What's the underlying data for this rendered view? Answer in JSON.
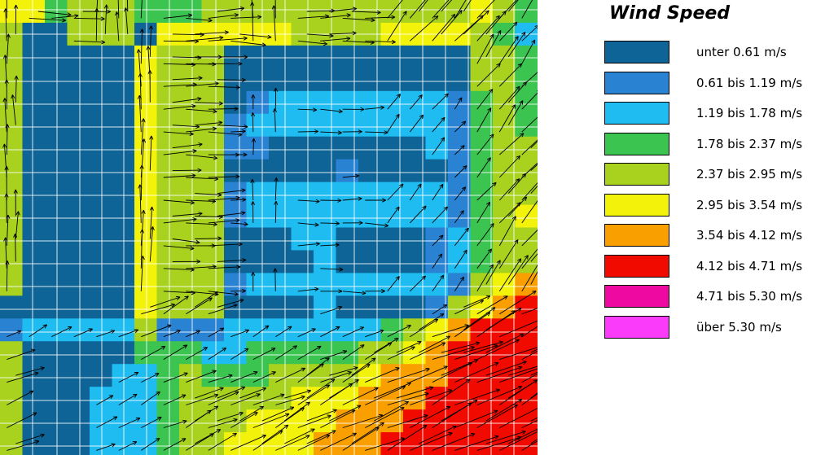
{
  "chart_data": {
    "type": "heatmap",
    "title": "Wind Speed",
    "unit": "m/s",
    "legend_position": "right",
    "classes": [
      {
        "label": "unter 0.61 m/s",
        "min": 0.0,
        "max": 0.61,
        "color": "#0e6496"
      },
      {
        "label": "0.61 bis 1.19 m/s",
        "min": 0.61,
        "max": 1.19,
        "color": "#2a82d2"
      },
      {
        "label": "1.19 bis 1.78 m/s",
        "min": 1.19,
        "max": 1.78,
        "color": "#1ebcf0"
      },
      {
        "label": "1.78 bis 2.37 m/s",
        "min": 1.78,
        "max": 2.37,
        "color": "#3cc450"
      },
      {
        "label": "2.37 bis 2.95 m/s",
        "min": 2.37,
        "max": 2.95,
        "color": "#a8d21e"
      },
      {
        "label": "2.95 bis 3.54 m/s",
        "min": 2.95,
        "max": 3.54,
        "color": "#f2f20a"
      },
      {
        "label": "3.54 bis 4.12 m/s",
        "min": 3.54,
        "max": 4.12,
        "color": "#f9a000"
      },
      {
        "label": "4.12 bis 4.71 m/s",
        "min": 4.12,
        "max": 4.71,
        "color": "#f00a00"
      },
      {
        "label": "4.71 bis 5.30 m/s",
        "min": 4.71,
        "max": 5.3,
        "color": "#ee0aa0"
      },
      {
        "label": "über 5.30 m/s",
        "min": 5.3,
        "max": null,
        "color": "#fa3cfa"
      }
    ],
    "grid_cols": 24,
    "grid_rows": 20,
    "class_grid": [
      "553444333444444444444543",
      "400444055555544445555432",
      "400000544400000000000443",
      "400000544400000000000443",
      "400000544401222222221343",
      "400000544412222222221343",
      "400000544411000000021344",
      "400000544400000100001344",
      "400000544412222222221344",
      "400000544412222222221345",
      "400000544400022000012344",
      "400000544400002000012344",
      "400000544412222222221456",
      "000000544400002000014567",
      "122222411122222223456777",
      "400000333223333344567777",
      "400002234333444456667777",
      "400022234444455566677777",
      "400022234445555666777777",
      "400022234455556667777777"
    ],
    "wind_vectors": {
      "shown": true,
      "description": "arrows indicating wind direction, mostly eastward over blocks, northward in street canyons and north-east in the lower right"
    },
    "xlabel": "",
    "ylabel": "",
    "grid": true
  }
}
